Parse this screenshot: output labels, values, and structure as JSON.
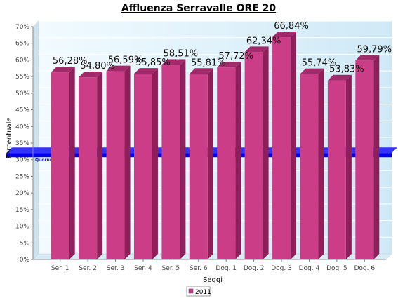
{
  "chart_data": {
    "type": "bar",
    "title": "Affluenza Serravalle ORE 20",
    "xlabel": "Seggi",
    "ylabel": "Percentuale",
    "categories": [
      "Ser. 1",
      "Ser. 2",
      "Ser. 3",
      "Ser. 4",
      "Ser. 5",
      "Ser. 6",
      "Dog. 1",
      "Dog. 2",
      "Dog. 3",
      "Dog. 4",
      "Dog. 5",
      "Dog. 6"
    ],
    "series": [
      {
        "name": "2011",
        "values": [
          56.28,
          54.8,
          56.59,
          55.85,
          58.51,
          55.81,
          57.72,
          62.34,
          66.84,
          55.74,
          53.83,
          59.79
        ],
        "labels": [
          "56,28%",
          "54,80%",
          "56,59%",
          "55,85%",
          "58,51%",
          "55,81%",
          "57,72%",
          "62,34%",
          "66,84%",
          "55,74%",
          "53,83%",
          "59,79%"
        ]
      }
    ],
    "ylim": [
      0,
      70
    ],
    "yticks": [
      "0%",
      "5%",
      "10%",
      "15%",
      "20%",
      "25%",
      "30%",
      "35%",
      "40%",
      "45%",
      "50%",
      "55%",
      "60%",
      "65%",
      "70%"
    ],
    "quorum": {
      "label": "Quorum (32%)",
      "value": 32
    },
    "grid": true,
    "legend_position": "bottom",
    "colors": {
      "bar": "#cc3d87",
      "bar_side": "#8e1f5a",
      "bar_top": "#a02a6a",
      "quorum": "#0000ee",
      "plot_bg": "#e6f6ff"
    }
  }
}
